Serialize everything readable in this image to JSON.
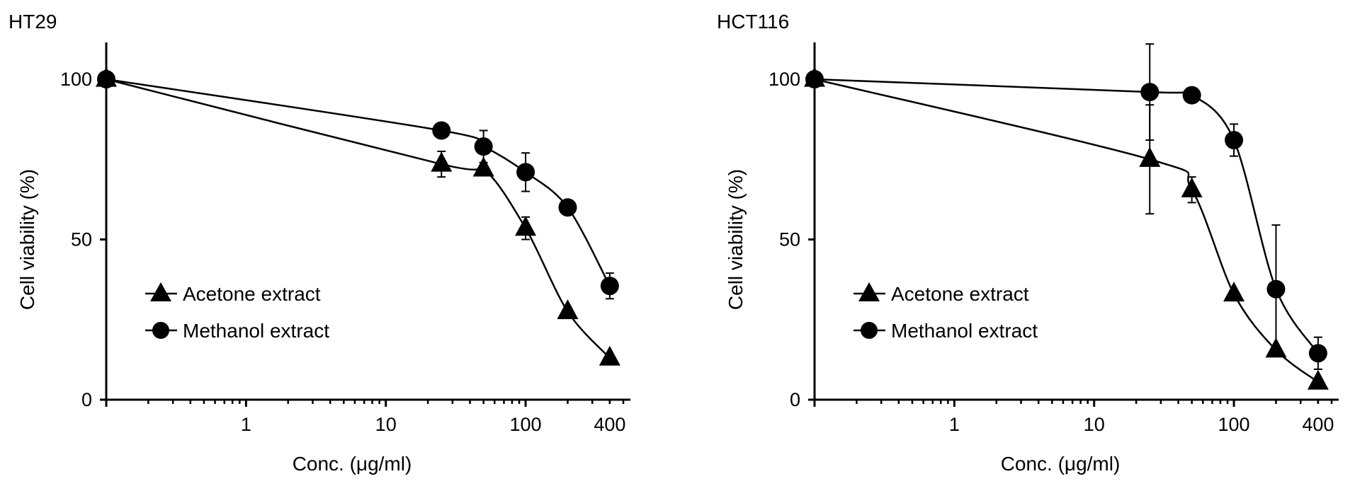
{
  "chart_data": [
    {
      "type": "line",
      "title": "HT29",
      "xlabel": "Conc. (μg/ml)",
      "ylabel": "Cell viability (%)",
      "x_scale": "log",
      "xlim": [
        0.1,
        500
      ],
      "ylim": [
        0,
        100
      ],
      "x_ticks": [
        1,
        10,
        100,
        400
      ],
      "y_ticks": [
        0,
        50,
        100
      ],
      "grid": false,
      "legend": "center-left",
      "series": [
        {
          "name": "Acetone extract",
          "marker": "triangle",
          "x": [
            0.1,
            25,
            50,
            100,
            200,
            400
          ],
          "y": [
            100,
            73.5,
            72,
            53.5,
            27.5,
            13
          ],
          "err": [
            0,
            4,
            0,
            3.5,
            0,
            0
          ]
        },
        {
          "name": "Methanol extract",
          "marker": "circle",
          "x": [
            0.1,
            25,
            50,
            100,
            200,
            400
          ],
          "y": [
            100,
            84,
            79,
            71,
            60,
            35.5
          ],
          "err": [
            0,
            0,
            5,
            6,
            0,
            4
          ]
        }
      ]
    },
    {
      "type": "line",
      "title": "HCT116",
      "xlabel": "Conc. (μg/ml)",
      "ylabel": "Cell viability (%)",
      "x_scale": "log",
      "xlim": [
        0.1,
        500
      ],
      "ylim": [
        0,
        100
      ],
      "x_ticks": [
        1,
        10,
        100,
        400
      ],
      "y_ticks": [
        0,
        50,
        100
      ],
      "grid": false,
      "legend": "center-left",
      "series": [
        {
          "name": "Acetone extract",
          "marker": "triangle",
          "x": [
            0.1,
            25,
            50,
            100,
            200,
            400
          ],
          "y": [
            100,
            75,
            65.5,
            33,
            15.5,
            5.5
          ],
          "err": [
            0,
            17,
            4,
            0,
            0,
            0
          ]
        },
        {
          "name": "Methanol extract",
          "marker": "circle",
          "x": [
            0.1,
            25,
            50,
            100,
            200,
            400
          ],
          "y": [
            100,
            96,
            95,
            81,
            34.5,
            14.5
          ],
          "err": [
            0,
            15,
            0,
            5,
            20,
            5
          ]
        }
      ]
    }
  ]
}
